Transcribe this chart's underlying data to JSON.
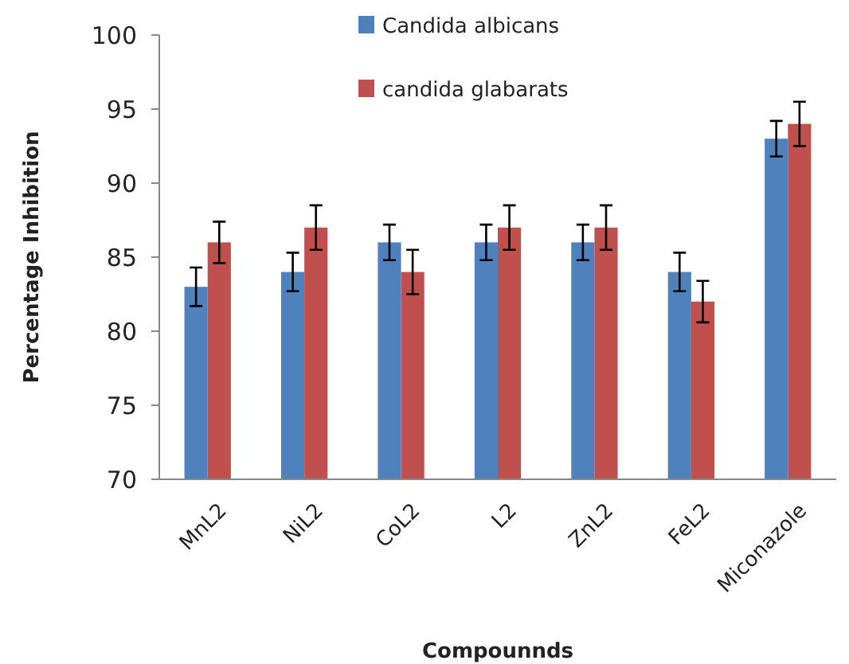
{
  "chart_data": {
    "type": "bar",
    "xlabel": "Compounnds",
    "ylabel": "Percentage Inhibition",
    "categories": [
      "MnL2",
      "NiL2",
      "CoL2",
      "L2",
      "ZnL2",
      "FeL2",
      "Miconazole"
    ],
    "series": [
      {
        "name": "Candida albicans",
        "color": "#4f81bd",
        "values": [
          83,
          84,
          86,
          86,
          86,
          84,
          93
        ],
        "errors": [
          1.3,
          1.3,
          1.2,
          1.2,
          1.2,
          1.3,
          1.2
        ]
      },
      {
        "name": "candida glabarats",
        "color": "#c0504d",
        "values": [
          86,
          87,
          84,
          87,
          87,
          82,
          94
        ],
        "errors": [
          1.4,
          1.5,
          1.5,
          1.5,
          1.5,
          1.4,
          1.5
        ]
      }
    ],
    "ylim": [
      70,
      100
    ],
    "yticks": [
      70,
      75,
      80,
      85,
      90,
      95,
      100
    ],
    "grid": false,
    "legend": "top"
  }
}
